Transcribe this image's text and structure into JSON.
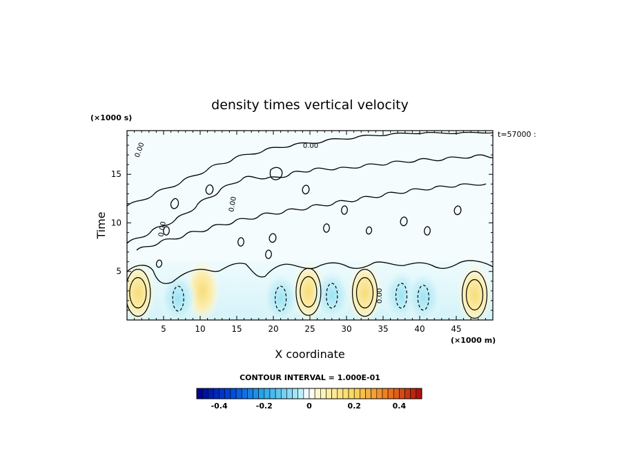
{
  "chart_data": {
    "type": "heatmap",
    "title": "density times vertical velocity",
    "xlabel": "X coordinate",
    "ylabel": "Time",
    "x_unit": "(×1000 m)",
    "y_unit": "(×1000 s)",
    "xlim": [
      0,
      50
    ],
    "ylim": [
      0,
      19.5
    ],
    "xticks": [
      5,
      10,
      15,
      20,
      25,
      30,
      35,
      40,
      45
    ],
    "yticks": [
      5,
      10,
      15
    ],
    "annotation": "t=57000 :",
    "contour_interval_label": "CONTOUR INTERVAL = 1.000E-01",
    "contour_labels": [
      "0.00",
      "0.00",
      "0.00",
      "0.00",
      "0.00"
    ],
    "colorbar": {
      "range": [
        -0.5,
        0.5
      ],
      "ticks": [
        "-0.4",
        "-0.2",
        "0",
        "0.2",
        "0.4"
      ],
      "tick_values": [
        -0.4,
        -0.2,
        0,
        0.2,
        0.4
      ],
      "n_bins": 40
    },
    "positive_cells": [
      {
        "x": 1.5,
        "y": 2.8,
        "value": 0.15
      },
      {
        "x": 10.3,
        "y": 3.0,
        "value": 0.08
      },
      {
        "x": 24.8,
        "y": 2.9,
        "value": 0.2
      },
      {
        "x": 32.5,
        "y": 2.8,
        "value": 0.2
      },
      {
        "x": 47.5,
        "y": 2.6,
        "value": 0.15
      }
    ],
    "negative_cells": [
      {
        "x": 7.0,
        "y": 2.2,
        "value": -0.12
      },
      {
        "x": 21.0,
        "y": 2.2,
        "value": -0.1
      },
      {
        "x": 28.0,
        "y": 2.5,
        "value": -0.1
      },
      {
        "x": 37.5,
        "y": 2.5,
        "value": -0.08
      },
      {
        "x": 40.5,
        "y": 2.3,
        "value": -0.1
      }
    ]
  }
}
